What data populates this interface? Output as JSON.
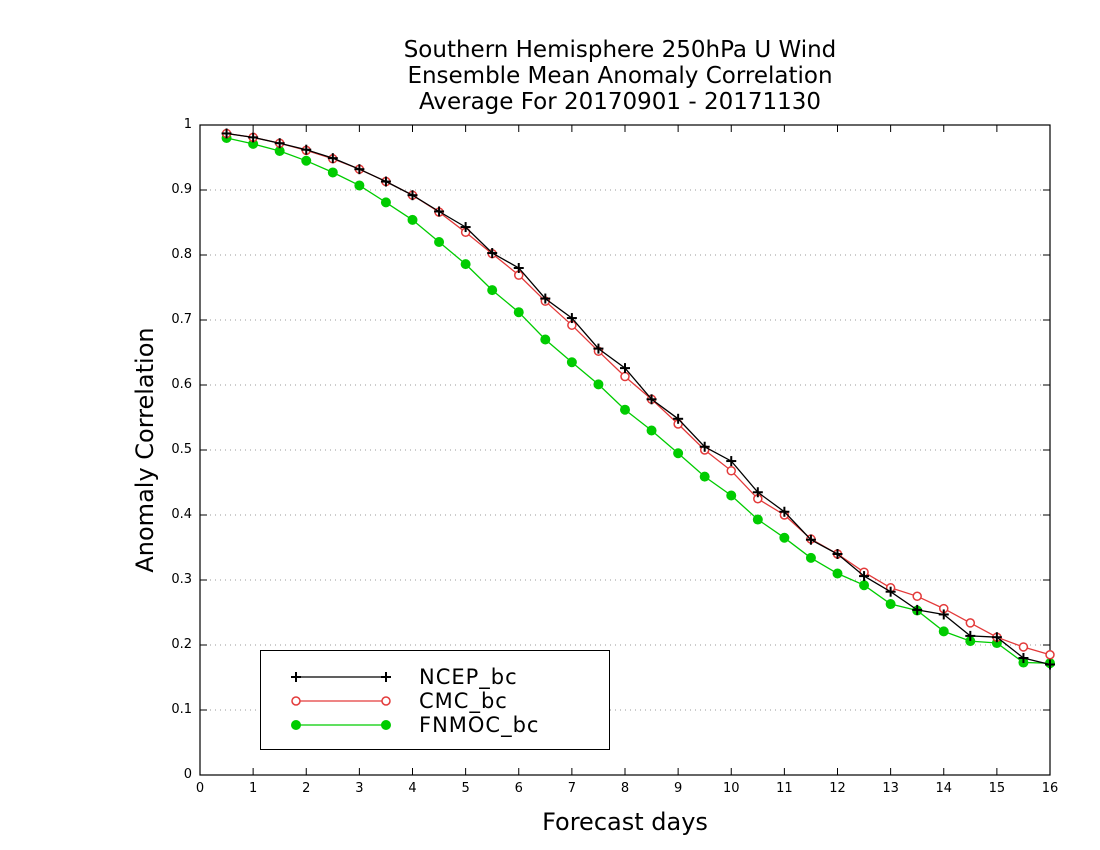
{
  "chart_data": {
    "type": "line",
    "title_lines": [
      "Southern Hemisphere 250hPa U Wind",
      "Ensemble Mean Anomaly Correlation",
      "Average For 20170901 - 20171130"
    ],
    "xlabel": "Forecast days",
    "ylabel": "Anomaly Correlation",
    "xlim": [
      0,
      16
    ],
    "ylim": [
      0,
      1
    ],
    "xticks": [
      "0",
      "1",
      "2",
      "3",
      "4",
      "5",
      "6",
      "7",
      "8",
      "9",
      "10",
      "11",
      "12",
      "13",
      "14",
      "15",
      "16"
    ],
    "yticks": [
      "0",
      "0.1",
      "0.2",
      "0.3",
      "0.4",
      "0.5",
      "0.6",
      "0.7",
      "0.8",
      "0.9",
      "1"
    ],
    "grid": "horizontal-dotted",
    "legend_placement": "bottom-left",
    "x": [
      0.5,
      1,
      1.5,
      2,
      2.5,
      3,
      3.5,
      4,
      4.5,
      5,
      5.5,
      6,
      6.5,
      7,
      7.5,
      8,
      8.5,
      9,
      9.5,
      10,
      10.5,
      11,
      11.5,
      12,
      12.5,
      13,
      13.5,
      14,
      14.5,
      15,
      15.5,
      16
    ],
    "series": [
      {
        "name": "NCEP_bc",
        "color": "#000000",
        "marker": "plus",
        "values": [
          0.987,
          0.981,
          0.972,
          0.962,
          0.949,
          0.932,
          0.913,
          0.892,
          0.867,
          0.843,
          0.803,
          0.78,
          0.733,
          0.703,
          0.656,
          0.626,
          0.578,
          0.548,
          0.505,
          0.483,
          0.435,
          0.405,
          0.362,
          0.34,
          0.306,
          0.282,
          0.254,
          0.247,
          0.214,
          0.212,
          0.18,
          0.17
        ]
      },
      {
        "name": "CMC_bc",
        "color": "#e33a3a",
        "marker": "open-circle",
        "values": [
          0.987,
          0.981,
          0.972,
          0.961,
          0.948,
          0.932,
          0.913,
          0.892,
          0.866,
          0.835,
          0.802,
          0.769,
          0.729,
          0.692,
          0.652,
          0.613,
          0.578,
          0.54,
          0.5,
          0.468,
          0.425,
          0.4,
          0.363,
          0.34,
          0.312,
          0.288,
          0.275,
          0.256,
          0.234,
          0.212,
          0.197,
          0.185
        ]
      },
      {
        "name": "FNMOC_bc",
        "color": "#00cc00",
        "marker": "filled-circle",
        "values": [
          0.98,
          0.971,
          0.96,
          0.945,
          0.927,
          0.907,
          0.881,
          0.854,
          0.82,
          0.786,
          0.746,
          0.712,
          0.67,
          0.635,
          0.601,
          0.562,
          0.53,
          0.495,
          0.459,
          0.43,
          0.393,
          0.365,
          0.334,
          0.31,
          0.292,
          0.263,
          0.253,
          0.221,
          0.206,
          0.203,
          0.173,
          0.172
        ]
      }
    ]
  }
}
